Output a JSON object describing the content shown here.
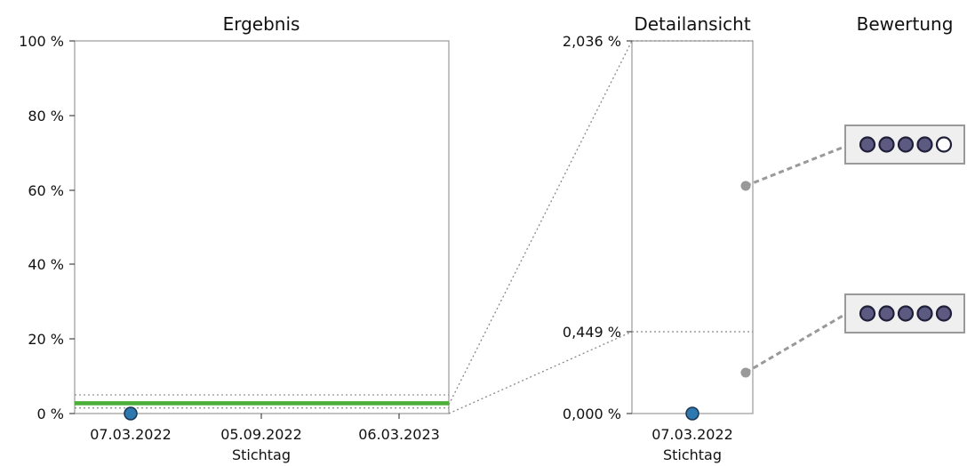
{
  "chart_data": [
    {
      "type": "scatter",
      "title": "Ergebnis",
      "xlabel": "Stichtag",
      "x_ticks": [
        "07.03.2022",
        "05.09.2022",
        "06.03.2023"
      ],
      "y_ticks": [
        "0 %",
        "20 %",
        "40 %",
        "60 %",
        "80 %",
        "100 %"
      ],
      "ylim": [
        0,
        100
      ],
      "points": [
        {
          "x": "07.03.2022",
          "y": 0.0
        }
      ],
      "reference_lines": [
        {
          "y": 2.5,
          "color": "#4caf3a",
          "style": "solid"
        },
        {
          "y": 3.0,
          "color": "#4caf3a",
          "style": "solid"
        },
        {
          "y": 5.0,
          "color": "#888888",
          "style": "dotted"
        },
        {
          "y": 1.5,
          "color": "#888888",
          "style": "dotted"
        }
      ],
      "colors": {
        "point": "#2e78b0",
        "band": "#4caf3a"
      }
    },
    {
      "type": "scatter",
      "title": "Detailansicht",
      "xlabel": "Stichtag",
      "x_ticks": [
        "07.03.2022"
      ],
      "y_ticks": [
        "0,000 %",
        "0,449 %",
        "2,036 %"
      ],
      "ylim": [
        0,
        2.036
      ],
      "points": [
        {
          "x": "07.03.2022",
          "y": 0.0
        }
      ],
      "reference_lines": [
        {
          "y": 0.449,
          "style": "dotted"
        },
        {
          "y": 2.036,
          "style": "dotted"
        }
      ],
      "threshold_markers": [
        {
          "y": 1.22
        },
        {
          "y": 0.22
        }
      ]
    },
    {
      "type": "rating",
      "title": "Bewertung",
      "ratings": [
        {
          "filled": 4,
          "total": 5
        },
        {
          "filled": 5,
          "total": 5
        }
      ],
      "colors": {
        "filled": "#5c5a80",
        "empty": "#ffffff",
        "outline": "#1f1f3a",
        "box": "#efefef"
      }
    }
  ]
}
